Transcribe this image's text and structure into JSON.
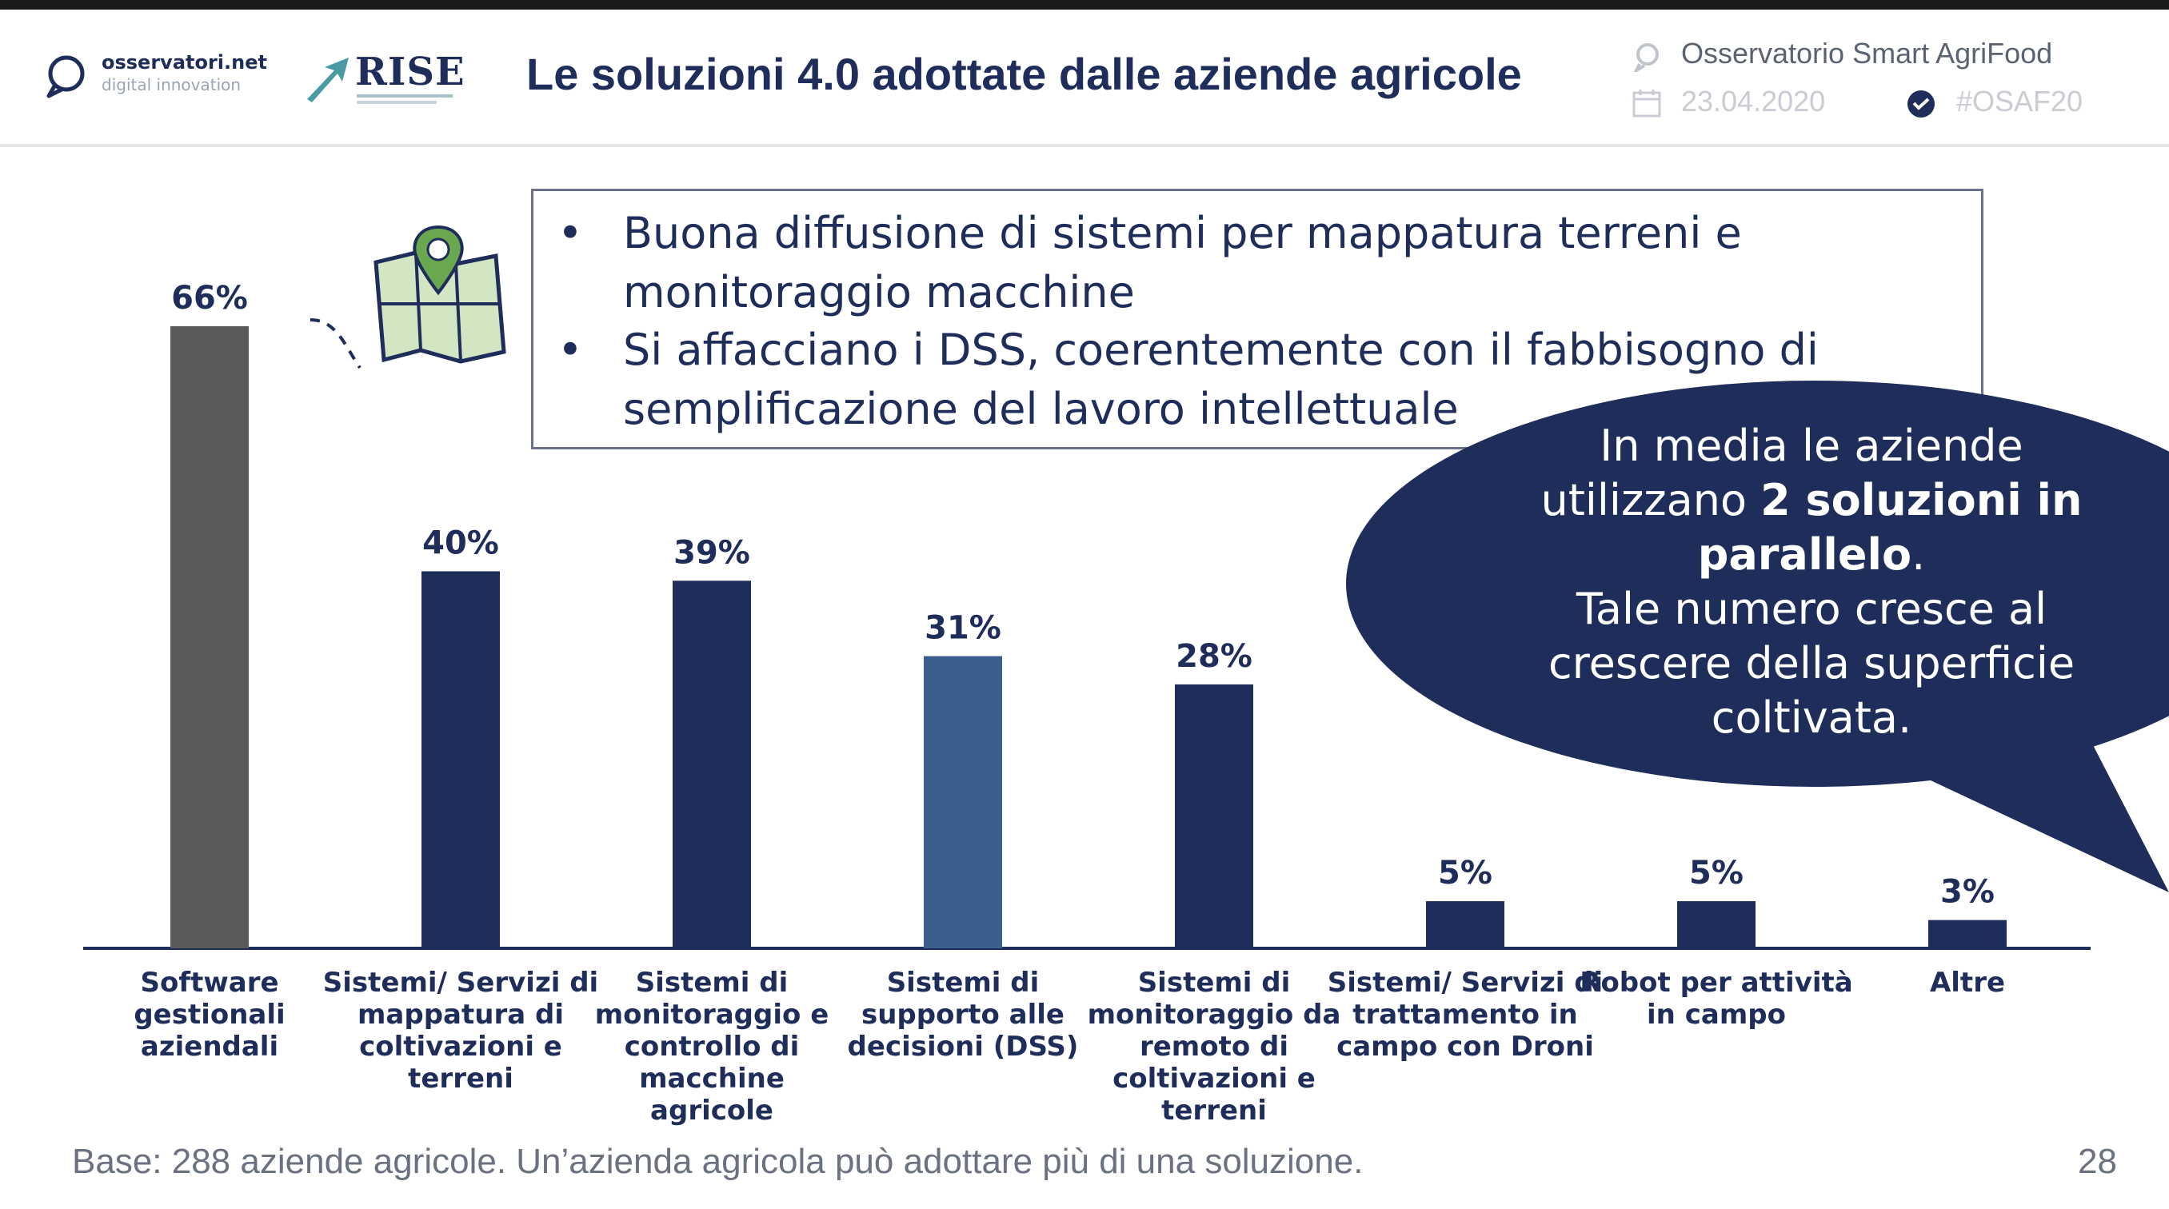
{
  "header": {
    "title": "Le soluzioni 4.0 adottate dalle aziende agricole",
    "logo_osservatori_line1": "osservatori.net",
    "logo_osservatori_line2": "digital innovation",
    "logo_rise": "RISE",
    "meta_name": "Osservatorio Smart AgriFood",
    "meta_date": "23.04.2020",
    "meta_hashtag": "#OSAF20"
  },
  "bullets": [
    "Buona diffusione di sistemi per mappatura  terreni e monitoraggio  macchine",
    "Si affacciano i DSS, coerentemente con il fabbisogno di semplificazione del lavoro intellettuale"
  ],
  "bubble": {
    "line1": "In media le aziende",
    "line2_normal": "utilizzano ",
    "line2_bold": "2 soluzioni in",
    "line3_bold": "parallelo",
    "line3_normal": ".",
    "line4": "Tale numero cresce al",
    "line5": "crescere della superficie",
    "line6": "coltivata."
  },
  "chart_data": {
    "type": "bar",
    "title": "",
    "xlabel": "",
    "ylabel": "",
    "ylim": [
      0,
      66
    ],
    "grid": false,
    "legend": "none",
    "categories": [
      [
        "Software",
        "gestionali",
        "aziendali"
      ],
      [
        "Sistemi/ Servizi di",
        "mappatura di",
        "coltivazioni e",
        "terreni"
      ],
      [
        "Sistemi di",
        "monitoraggio e",
        "controllo di",
        "macchine",
        "agricole"
      ],
      [
        "Sistemi di",
        "supporto alle",
        "decisioni (DSS)"
      ],
      [
        "Sistemi di",
        "monitoraggio da",
        "remoto di",
        "coltivazioni e",
        "terreni"
      ],
      [
        "Sistemi/ Servizi di",
        "trattamento in",
        "campo con Droni"
      ],
      [
        "Robot per attività",
        "in campo"
      ],
      [
        "Altre"
      ]
    ],
    "values": [
      66,
      40,
      39,
      31,
      28,
      5,
      5,
      3
    ],
    "value_labels": [
      "66%",
      "40%",
      "39%",
      "31%",
      "28%",
      "5%",
      "5%",
      "3%"
    ],
    "colors": [
      "#5a5a5a",
      "#1e2d5a",
      "#1e2d5a",
      "#3a5f8f",
      "#1e2d5a",
      "#1e2d5a",
      "#1e2d5a",
      "#1e2d5a"
    ]
  },
  "footer": {
    "note": "Base: 288 aziende agricole. Un’azienda agricola può adottare più di una soluzione.",
    "page_number": "28"
  },
  "colors": {
    "navy": "#1e2d5a",
    "grey_bar": "#5a5a5a",
    "dss_bar": "#3a5f8f",
    "bubble": "#1e2d5a",
    "teal_logo": "#4a9aa6"
  }
}
